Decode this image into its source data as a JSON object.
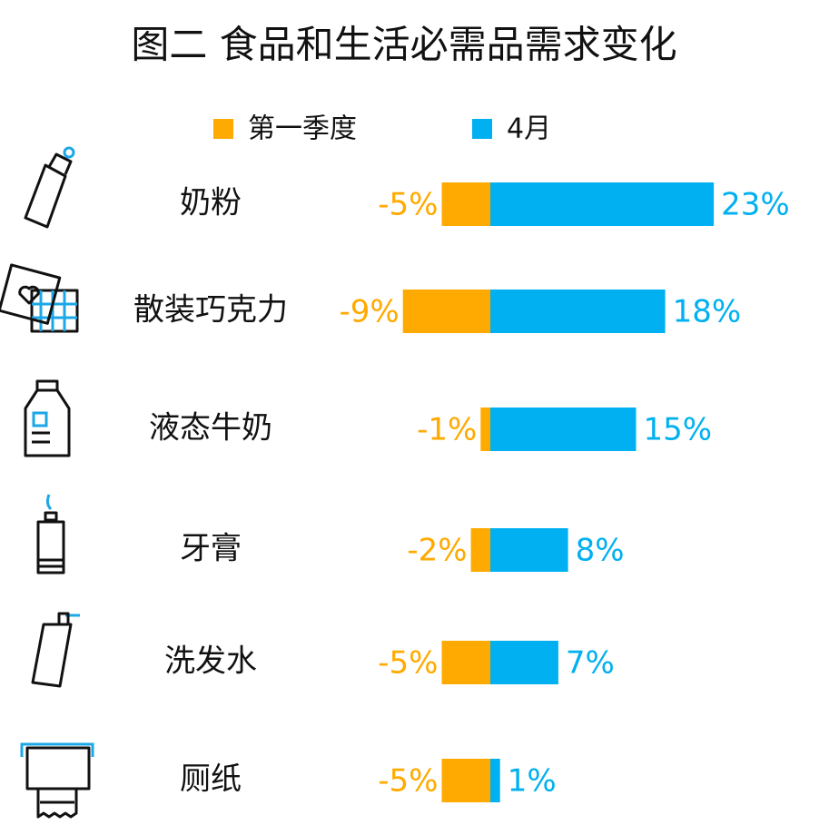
{
  "chart_data": {
    "type": "diverging-bar",
    "title": "图二 食品和生活必需品需求变化",
    "categories": [
      "奶粉",
      "散装巧克力",
      "液态牛奶",
      "牙膏",
      "洗发水",
      "厕纸"
    ],
    "series": [
      {
        "name": "第一季度",
        "color": "#FFAA00",
        "values": [
          -5,
          -9,
          -1,
          -2,
          -5,
          -5
        ],
        "value_labels": [
          "-5%",
          "-9%",
          "-1%",
          "-2%",
          "-5%",
          "-5%"
        ]
      },
      {
        "name": "4月",
        "color": "#00B0F0",
        "values": [
          23,
          18,
          15,
          8,
          7,
          1
        ],
        "value_labels": [
          "23%",
          "18%",
          "15%",
          "8%",
          "7%",
          "1%"
        ]
      }
    ]
  }
}
